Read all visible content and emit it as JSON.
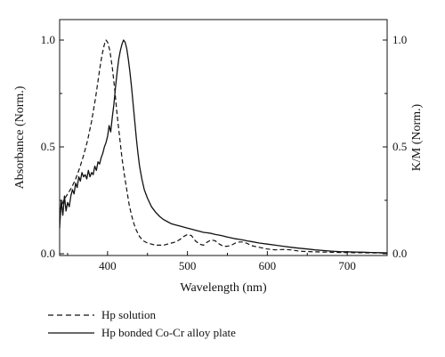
{
  "chart_data": {
    "type": "line",
    "xlabel": "Wavelength (nm)",
    "ylabel_left": "Absorbance (Norm.)",
    "ylabel_right": "K/M (Norm.)",
    "xlim": [
      340,
      750
    ],
    "ylim": [
      0,
      1.05
    ],
    "x_ticks": [
      "400",
      "500",
      "600",
      "700"
    ],
    "y_ticks_left": [
      "0.0",
      "0.5",
      "1.0"
    ],
    "y_ticks_right": [
      "0.0",
      "0.5",
      "1.0"
    ],
    "legend_placement": "below",
    "series": [
      {
        "name": "Hp solution",
        "style": "dashed",
        "points": [
          [
            340,
            0.2
          ],
          [
            345,
            0.25
          ],
          [
            350,
            0.28
          ],
          [
            355,
            0.31
          ],
          [
            360,
            0.35
          ],
          [
            365,
            0.4
          ],
          [
            370,
            0.46
          ],
          [
            375,
            0.53
          ],
          [
            380,
            0.62
          ],
          [
            385,
            0.73
          ],
          [
            390,
            0.86
          ],
          [
            393,
            0.93
          ],
          [
            396,
            0.98
          ],
          [
            398,
            1.0
          ],
          [
            400,
            0.99
          ],
          [
            403,
            0.95
          ],
          [
            406,
            0.87
          ],
          [
            409,
            0.77
          ],
          [
            412,
            0.65
          ],
          [
            415,
            0.55
          ],
          [
            418,
            0.45
          ],
          [
            421,
            0.37
          ],
          [
            424,
            0.3
          ],
          [
            427,
            0.23
          ],
          [
            430,
            0.18
          ],
          [
            433,
            0.14
          ],
          [
            436,
            0.11
          ],
          [
            440,
            0.08
          ],
          [
            445,
            0.06
          ],
          [
            450,
            0.05
          ],
          [
            455,
            0.045
          ],
          [
            460,
            0.04
          ],
          [
            465,
            0.04
          ],
          [
            470,
            0.04
          ],
          [
            475,
            0.045
          ],
          [
            480,
            0.05
          ],
          [
            485,
            0.055
          ],
          [
            490,
            0.065
          ],
          [
            495,
            0.08
          ],
          [
            500,
            0.09
          ],
          [
            505,
            0.085
          ],
          [
            510,
            0.06
          ],
          [
            515,
            0.045
          ],
          [
            520,
            0.04
          ],
          [
            525,
            0.055
          ],
          [
            530,
            0.065
          ],
          [
            535,
            0.06
          ],
          [
            540,
            0.045
          ],
          [
            545,
            0.035
          ],
          [
            550,
            0.035
          ],
          [
            555,
            0.04
          ],
          [
            560,
            0.05
          ],
          [
            565,
            0.055
          ],
          [
            570,
            0.055
          ],
          [
            575,
            0.048
          ],
          [
            580,
            0.038
          ],
          [
            590,
            0.03
          ],
          [
            600,
            0.022
          ],
          [
            610,
            0.018
          ],
          [
            620,
            0.02
          ],
          [
            630,
            0.018
          ],
          [
            640,
            0.012
          ],
          [
            650,
            0.01
          ],
          [
            670,
            0.008
          ],
          [
            700,
            0.005
          ],
          [
            725,
            0.004
          ],
          [
            750,
            0.003
          ]
        ]
      },
      {
        "name": "Hp bonded Co-Cr alloy plate",
        "style": "solid",
        "points": [
          [
            340,
            0.12
          ],
          [
            342,
            0.25
          ],
          [
            344,
            0.18
          ],
          [
            346,
            0.27
          ],
          [
            348,
            0.2
          ],
          [
            350,
            0.24
          ],
          [
            352,
            0.22
          ],
          [
            354,
            0.27
          ],
          [
            356,
            0.3
          ],
          [
            358,
            0.28
          ],
          [
            360,
            0.33
          ],
          [
            362,
            0.31
          ],
          [
            364,
            0.36
          ],
          [
            366,
            0.34
          ],
          [
            368,
            0.38
          ],
          [
            370,
            0.36
          ],
          [
            372,
            0.37
          ],
          [
            374,
            0.35
          ],
          [
            376,
            0.39
          ],
          [
            378,
            0.36
          ],
          [
            380,
            0.38
          ],
          [
            382,
            0.37
          ],
          [
            384,
            0.41
          ],
          [
            386,
            0.39
          ],
          [
            388,
            0.43
          ],
          [
            390,
            0.42
          ],
          [
            392,
            0.45
          ],
          [
            394,
            0.47
          ],
          [
            396,
            0.5
          ],
          [
            398,
            0.52
          ],
          [
            400,
            0.55
          ],
          [
            402,
            0.6
          ],
          [
            404,
            0.57
          ],
          [
            406,
            0.64
          ],
          [
            408,
            0.7
          ],
          [
            410,
            0.78
          ],
          [
            412,
            0.85
          ],
          [
            414,
            0.91
          ],
          [
            416,
            0.95
          ],
          [
            418,
            0.98
          ],
          [
            420,
            1.0
          ],
          [
            422,
            0.99
          ],
          [
            424,
            0.96
          ],
          [
            426,
            0.91
          ],
          [
            428,
            0.85
          ],
          [
            430,
            0.78
          ],
          [
            432,
            0.7
          ],
          [
            434,
            0.62
          ],
          [
            436,
            0.54
          ],
          [
            438,
            0.47
          ],
          [
            440,
            0.41
          ],
          [
            443,
            0.35
          ],
          [
            446,
            0.3
          ],
          [
            450,
            0.26
          ],
          [
            455,
            0.22
          ],
          [
            460,
            0.195
          ],
          [
            465,
            0.175
          ],
          [
            470,
            0.16
          ],
          [
            475,
            0.15
          ],
          [
            480,
            0.14
          ],
          [
            485,
            0.135
          ],
          [
            490,
            0.13
          ],
          [
            495,
            0.125
          ],
          [
            500,
            0.12
          ],
          [
            505,
            0.115
          ],
          [
            510,
            0.11
          ],
          [
            515,
            0.105
          ],
          [
            520,
            0.1
          ],
          [
            525,
            0.098
          ],
          [
            530,
            0.095
          ],
          [
            535,
            0.09
          ],
          [
            540,
            0.087
          ],
          [
            545,
            0.083
          ],
          [
            550,
            0.078
          ],
          [
            555,
            0.074
          ],
          [
            560,
            0.07
          ],
          [
            565,
            0.067
          ],
          [
            570,
            0.064
          ],
          [
            575,
            0.06
          ],
          [
            580,
            0.057
          ],
          [
            590,
            0.05
          ],
          [
            600,
            0.045
          ],
          [
            610,
            0.04
          ],
          [
            620,
            0.035
          ],
          [
            630,
            0.03
          ],
          [
            640,
            0.026
          ],
          [
            650,
            0.022
          ],
          [
            660,
            0.018
          ],
          [
            670,
            0.015
          ],
          [
            680,
            0.012
          ],
          [
            690,
            0.01
          ],
          [
            700,
            0.009
          ],
          [
            710,
            0.008
          ],
          [
            720,
            0.007
          ],
          [
            730,
            0.006
          ],
          [
            740,
            0.005
          ],
          [
            750,
            0.004
          ]
        ]
      }
    ]
  }
}
